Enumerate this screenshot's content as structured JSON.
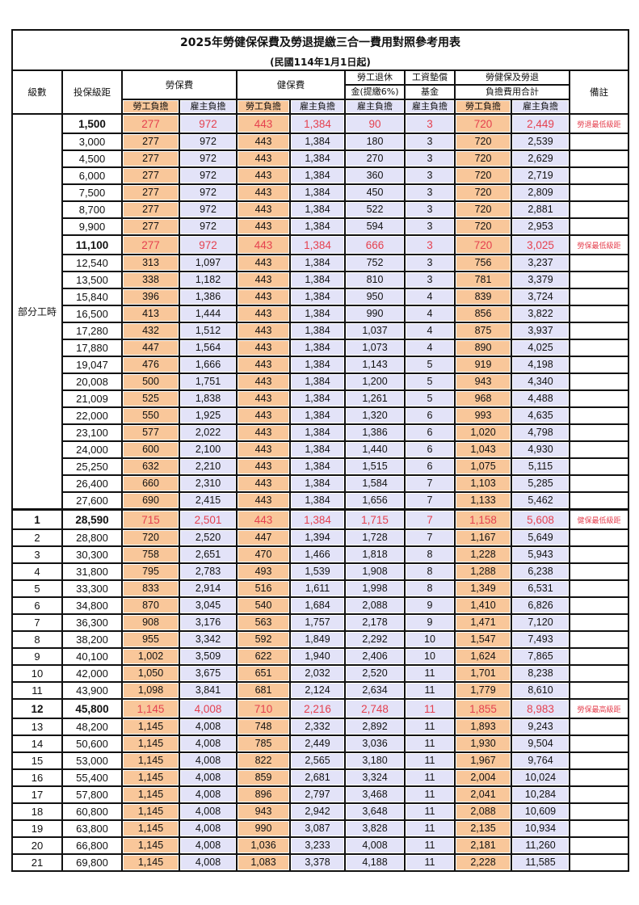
{
  "title": "2025年勞健保保費及勞退提繳三合一費用對照參考用表",
  "subtitle": "(民國114年1月1日起)",
  "headers": {
    "level": "級數",
    "salary": "投保級距",
    "labor_ins": "勞保費",
    "health_ins": "健保費",
    "pension_1": "勞工退休",
    "pension_2": "金(提繳6%)",
    "wage_fund_1": "工資墊償",
    "wage_fund_2": "基金",
    "total_1": "勞健保及勞退",
    "total_2": "負擔費用合計",
    "remarks": "備註",
    "employee": "勞工負擔",
    "employer": "雇主負擔"
  },
  "part_time_label": "部分工時",
  "colors": {
    "employee_fill": "#f9c79a",
    "employer_fill": "#e3e3f8",
    "highlight_text": "#e5414f"
  },
  "rows": [
    {
      "level": "",
      "salary": "1,500",
      "v": [
        "277",
        "972",
        "443",
        "1,384",
        "90",
        "3",
        "720",
        "2,449"
      ],
      "note": "勞退最低級距",
      "hl": true
    },
    {
      "level": "",
      "salary": "3,000",
      "v": [
        "277",
        "972",
        "443",
        "1,384",
        "180",
        "3",
        "720",
        "2,539"
      ],
      "note": ""
    },
    {
      "level": "",
      "salary": "4,500",
      "v": [
        "277",
        "972",
        "443",
        "1,384",
        "270",
        "3",
        "720",
        "2,629"
      ],
      "note": ""
    },
    {
      "level": "",
      "salary": "6,000",
      "v": [
        "277",
        "972",
        "443",
        "1,384",
        "360",
        "3",
        "720",
        "2,719"
      ],
      "note": ""
    },
    {
      "level": "",
      "salary": "7,500",
      "v": [
        "277",
        "972",
        "443",
        "1,384",
        "450",
        "3",
        "720",
        "2,809"
      ],
      "note": ""
    },
    {
      "level": "",
      "salary": "8,700",
      "v": [
        "277",
        "972",
        "443",
        "1,384",
        "522",
        "3",
        "720",
        "2,881"
      ],
      "note": ""
    },
    {
      "level": "",
      "salary": "9,900",
      "v": [
        "277",
        "972",
        "443",
        "1,384",
        "594",
        "3",
        "720",
        "2,953"
      ],
      "note": ""
    },
    {
      "level": "",
      "salary": "11,100",
      "v": [
        "277",
        "972",
        "443",
        "1,384",
        "666",
        "3",
        "720",
        "3,025"
      ],
      "note": "勞保最低級距",
      "hl": true
    },
    {
      "level": "",
      "salary": "12,540",
      "v": [
        "313",
        "1,097",
        "443",
        "1,384",
        "752",
        "3",
        "756",
        "3,237"
      ],
      "note": ""
    },
    {
      "level": "",
      "salary": "13,500",
      "v": [
        "338",
        "1,182",
        "443",
        "1,384",
        "810",
        "3",
        "781",
        "3,379"
      ],
      "note": ""
    },
    {
      "level": "",
      "salary": "15,840",
      "v": [
        "396",
        "1,386",
        "443",
        "1,384",
        "950",
        "4",
        "839",
        "3,724"
      ],
      "note": ""
    },
    {
      "level": "",
      "salary": "16,500",
      "v": [
        "413",
        "1,444",
        "443",
        "1,384",
        "990",
        "4",
        "856",
        "3,822"
      ],
      "note": ""
    },
    {
      "level": "",
      "salary": "17,280",
      "v": [
        "432",
        "1,512",
        "443",
        "1,384",
        "1,037",
        "4",
        "875",
        "3,937"
      ],
      "note": ""
    },
    {
      "level": "",
      "salary": "17,880",
      "v": [
        "447",
        "1,564",
        "443",
        "1,384",
        "1,073",
        "4",
        "890",
        "4,025"
      ],
      "note": ""
    },
    {
      "level": "",
      "salary": "19,047",
      "v": [
        "476",
        "1,666",
        "443",
        "1,384",
        "1,143",
        "5",
        "919",
        "4,198"
      ],
      "note": ""
    },
    {
      "level": "",
      "salary": "20,008",
      "v": [
        "500",
        "1,751",
        "443",
        "1,384",
        "1,200",
        "5",
        "943",
        "4,340"
      ],
      "note": ""
    },
    {
      "level": "",
      "salary": "21,009",
      "v": [
        "525",
        "1,838",
        "443",
        "1,384",
        "1,261",
        "5",
        "968",
        "4,488"
      ],
      "note": ""
    },
    {
      "level": "",
      "salary": "22,000",
      "v": [
        "550",
        "1,925",
        "443",
        "1,384",
        "1,320",
        "6",
        "993",
        "4,635"
      ],
      "note": ""
    },
    {
      "level": "",
      "salary": "23,100",
      "v": [
        "577",
        "2,022",
        "443",
        "1,384",
        "1,386",
        "6",
        "1,020",
        "4,798"
      ],
      "note": ""
    },
    {
      "level": "",
      "salary": "24,000",
      "v": [
        "600",
        "2,100",
        "443",
        "1,384",
        "1,440",
        "6",
        "1,043",
        "4,930"
      ],
      "note": ""
    },
    {
      "level": "",
      "salary": "25,250",
      "v": [
        "632",
        "2,210",
        "443",
        "1,384",
        "1,515",
        "6",
        "1,075",
        "5,115"
      ],
      "note": ""
    },
    {
      "level": "",
      "salary": "26,400",
      "v": [
        "660",
        "2,310",
        "443",
        "1,384",
        "1,584",
        "7",
        "1,103",
        "5,285"
      ],
      "note": ""
    },
    {
      "level": "",
      "salary": "27,600",
      "v": [
        "690",
        "2,415",
        "443",
        "1,384",
        "1,656",
        "7",
        "1,133",
        "5,462"
      ],
      "note": ""
    },
    {
      "level": "1",
      "salary": "28,590",
      "v": [
        "715",
        "2,501",
        "443",
        "1,384",
        "1,715",
        "7",
        "1,158",
        "5,608"
      ],
      "note": "健保最低級距",
      "hl": true
    },
    {
      "level": "2",
      "salary": "28,800",
      "v": [
        "720",
        "2,520",
        "447",
        "1,394",
        "1,728",
        "7",
        "1,167",
        "5,649"
      ],
      "note": ""
    },
    {
      "level": "3",
      "salary": "30,300",
      "v": [
        "758",
        "2,651",
        "470",
        "1,466",
        "1,818",
        "8",
        "1,228",
        "5,943"
      ],
      "note": ""
    },
    {
      "level": "4",
      "salary": "31,800",
      "v": [
        "795",
        "2,783",
        "493",
        "1,539",
        "1,908",
        "8",
        "1,288",
        "6,238"
      ],
      "note": ""
    },
    {
      "level": "5",
      "salary": "33,300",
      "v": [
        "833",
        "2,914",
        "516",
        "1,611",
        "1,998",
        "8",
        "1,349",
        "6,531"
      ],
      "note": ""
    },
    {
      "level": "6",
      "salary": "34,800",
      "v": [
        "870",
        "3,045",
        "540",
        "1,684",
        "2,088",
        "9",
        "1,410",
        "6,826"
      ],
      "note": ""
    },
    {
      "level": "7",
      "salary": "36,300",
      "v": [
        "908",
        "3,176",
        "563",
        "1,757",
        "2,178",
        "9",
        "1,471",
        "7,120"
      ],
      "note": ""
    },
    {
      "level": "8",
      "salary": "38,200",
      "v": [
        "955",
        "3,342",
        "592",
        "1,849",
        "2,292",
        "10",
        "1,547",
        "7,493"
      ],
      "note": ""
    },
    {
      "level": "9",
      "salary": "40,100",
      "v": [
        "1,002",
        "3,509",
        "622",
        "1,940",
        "2,406",
        "10",
        "1,624",
        "7,865"
      ],
      "note": ""
    },
    {
      "level": "10",
      "salary": "42,000",
      "v": [
        "1,050",
        "3,675",
        "651",
        "2,032",
        "2,520",
        "11",
        "1,701",
        "8,238"
      ],
      "note": ""
    },
    {
      "level": "11",
      "salary": "43,900",
      "v": [
        "1,098",
        "3,841",
        "681",
        "2,124",
        "2,634",
        "11",
        "1,779",
        "8,610"
      ],
      "note": ""
    },
    {
      "level": "12",
      "salary": "45,800",
      "v": [
        "1,145",
        "4,008",
        "710",
        "2,216",
        "2,748",
        "11",
        "1,855",
        "8,983"
      ],
      "note": "勞保最高級距",
      "hl": true
    },
    {
      "level": "13",
      "salary": "48,200",
      "v": [
        "1,145",
        "4,008",
        "748",
        "2,332",
        "2,892",
        "11",
        "1,893",
        "9,243"
      ],
      "note": ""
    },
    {
      "level": "14",
      "salary": "50,600",
      "v": [
        "1,145",
        "4,008",
        "785",
        "2,449",
        "3,036",
        "11",
        "1,930",
        "9,504"
      ],
      "note": ""
    },
    {
      "level": "15",
      "salary": "53,000",
      "v": [
        "1,145",
        "4,008",
        "822",
        "2,565",
        "3,180",
        "11",
        "1,967",
        "9,764"
      ],
      "note": ""
    },
    {
      "level": "16",
      "salary": "55,400",
      "v": [
        "1,145",
        "4,008",
        "859",
        "2,681",
        "3,324",
        "11",
        "2,004",
        "10,024"
      ],
      "note": ""
    },
    {
      "level": "17",
      "salary": "57,800",
      "v": [
        "1,145",
        "4,008",
        "896",
        "2,797",
        "3,468",
        "11",
        "2,041",
        "10,284"
      ],
      "note": ""
    },
    {
      "level": "18",
      "salary": "60,800",
      "v": [
        "1,145",
        "4,008",
        "943",
        "2,942",
        "3,648",
        "11",
        "2,088",
        "10,609"
      ],
      "note": ""
    },
    {
      "level": "19",
      "salary": "63,800",
      "v": [
        "1,145",
        "4,008",
        "990",
        "3,087",
        "3,828",
        "11",
        "2,135",
        "10,934"
      ],
      "note": ""
    },
    {
      "level": "20",
      "salary": "66,800",
      "v": [
        "1,145",
        "4,008",
        "1,036",
        "3,233",
        "4,008",
        "11",
        "2,181",
        "11,260"
      ],
      "note": ""
    },
    {
      "level": "21",
      "salary": "69,800",
      "v": [
        "1,145",
        "4,008",
        "1,083",
        "3,378",
        "4,188",
        "11",
        "2,228",
        "11,585"
      ],
      "note": ""
    }
  ]
}
